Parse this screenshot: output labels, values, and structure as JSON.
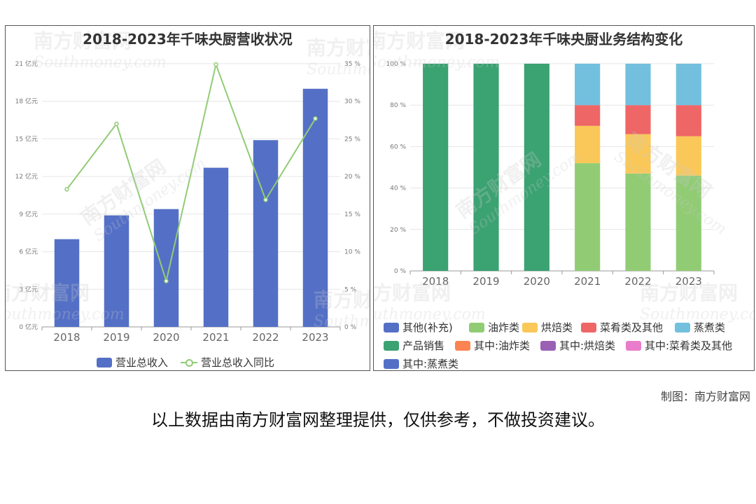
{
  "credit": "制图：南方财富网",
  "disclaimer": "以上数据由南方财富网整理提供，仅供参考，不做投资建议。",
  "watermark": {
    "text": "南方财富网",
    "sub": "Southmoney.com"
  },
  "chart_data": [
    {
      "type": "bar",
      "title": "2018-2023年千味央厨营收状况",
      "categories": [
        "2018",
        "2019",
        "2020",
        "2021",
        "2022",
        "2023"
      ],
      "y_left": {
        "min": 0,
        "max": 21,
        "step": 3,
        "unit": "亿元"
      },
      "y_right": {
        "min": 0,
        "max": 35,
        "step": 5,
        "unit": "%"
      },
      "series": [
        {
          "name": "营业总收入",
          "kind": "bar",
          "axis": "left",
          "color": "#5470c6",
          "values": [
            7.0,
            8.9,
            9.4,
            12.7,
            14.9,
            19.0
          ]
        },
        {
          "name": "营业总收入同比",
          "kind": "line",
          "axis": "right",
          "color": "#91cc75",
          "values": [
            18.3,
            27.0,
            6.1,
            34.9,
            16.9,
            27.7
          ]
        }
      ],
      "legend_position": "bottom",
      "grid": true
    },
    {
      "type": "bar",
      "stacked": true,
      "title": "2018-2023年千味央厨业务结构变化",
      "categories": [
        "2018",
        "2019",
        "2020",
        "2021",
        "2022",
        "2023"
      ],
      "y": {
        "min": 0,
        "max": 100,
        "step": 20,
        "unit": "%"
      },
      "series": [
        {
          "name": "其他(补充)",
          "color": "#5470c6",
          "values": [
            0,
            0,
            0,
            0,
            0,
            0
          ]
        },
        {
          "name": "油炸类",
          "color": "#91cc75",
          "values": [
            0,
            0,
            0,
            52,
            47,
            46
          ]
        },
        {
          "name": "烘焙类",
          "color": "#fac858",
          "values": [
            0,
            0,
            0,
            18,
            19,
            19
          ]
        },
        {
          "name": "菜肴类及其他",
          "color": "#ee6666",
          "values": [
            0,
            0,
            0,
            10,
            14,
            15
          ]
        },
        {
          "name": "蒸煮类",
          "color": "#73c0de",
          "values": [
            0,
            0,
            0,
            20,
            20,
            20
          ]
        },
        {
          "name": "产品销售",
          "color": "#3ba272",
          "values": [
            100,
            100,
            100,
            0,
            0,
            0
          ]
        },
        {
          "name": "其中:油炸类",
          "color": "#fc8452",
          "values": [
            0,
            0,
            0,
            0,
            0,
            0
          ]
        },
        {
          "name": "其中:烘焙类",
          "color": "#9a60b4",
          "values": [
            0,
            0,
            0,
            0,
            0,
            0
          ]
        },
        {
          "name": "其中:菜肴类及其他",
          "color": "#ea7ccc",
          "values": [
            0,
            0,
            0,
            0,
            0,
            0
          ]
        },
        {
          "name": "其中:蒸煮类",
          "color": "#5470c6",
          "values": [
            0,
            0,
            0,
            0,
            0,
            0
          ]
        }
      ],
      "legend_position": "bottom",
      "grid": true
    }
  ]
}
